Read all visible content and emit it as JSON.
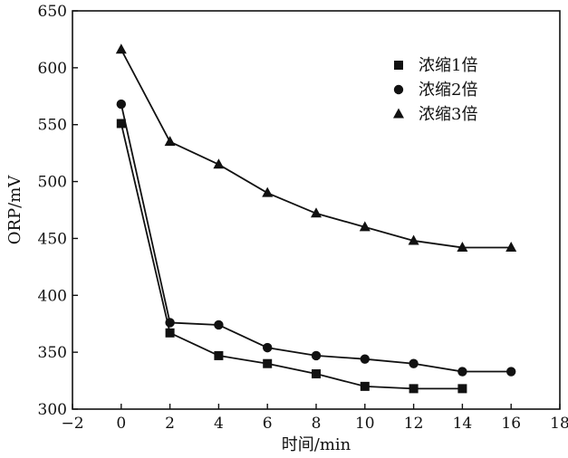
{
  "chart_data": {
    "type": "line",
    "xlabel": "时间/min",
    "ylabel": "ORP/mV",
    "xlim": [
      -2,
      18
    ],
    "ylim": [
      300,
      650
    ],
    "xticks": [
      -2,
      0,
      2,
      4,
      6,
      8,
      10,
      12,
      14,
      16,
      18
    ],
    "yticks": [
      300,
      350,
      400,
      450,
      500,
      550,
      600,
      650
    ],
    "xtick_labels": [
      "−2",
      "0",
      "2",
      "4",
      "6",
      "8",
      "10",
      "12",
      "14",
      "16",
      "18"
    ],
    "ytick_labels": [
      "300",
      "350",
      "400",
      "450",
      "500",
      "550",
      "600",
      "650"
    ],
    "grid": false,
    "legend_position": "top-right",
    "series": [
      {
        "name": "浓缩1倍",
        "marker": "square",
        "x": [
          0,
          2,
          4,
          6,
          8,
          10,
          12,
          14
        ],
        "y": [
          551,
          367,
          347,
          340,
          331,
          320,
          318,
          318
        ]
      },
      {
        "name": "浓缩2倍",
        "marker": "circle",
        "x": [
          0,
          2,
          4,
          6,
          8,
          10,
          12,
          14,
          16
        ],
        "y": [
          568,
          376,
          374,
          354,
          347,
          344,
          340,
          333,
          333
        ]
      },
      {
        "name": "浓缩3倍",
        "marker": "triangle",
        "x": [
          0,
          2,
          4,
          6,
          8,
          10,
          12,
          14,
          16
        ],
        "y": [
          616,
          535,
          515,
          490,
          472,
          460,
          448,
          442,
          442
        ]
      }
    ]
  }
}
